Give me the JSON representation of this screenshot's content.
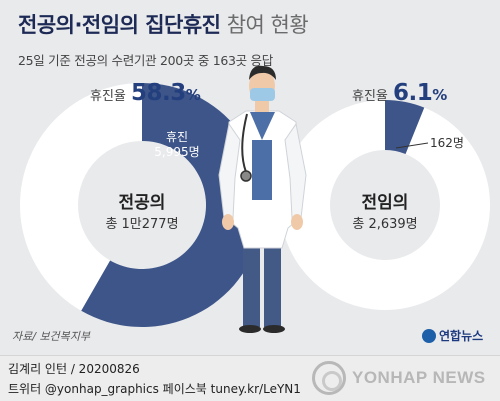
{
  "title": {
    "bold": "전공의·전임의 집단휴진",
    "light": "참여 현황"
  },
  "subtitle": "25일 기준 전공의 수련기관 200곳 중 163곳 응답",
  "chart_data": [
    {
      "type": "pie",
      "name": "전공의",
      "total_label": "총 1만277명",
      "total": 10277,
      "rate_label": "휴진율",
      "rate": "58.3",
      "rate_unit": "%",
      "slice_title": "휴진",
      "slice_value_label": "5,995명",
      "value": 5995,
      "fraction": 0.583,
      "colors": {
        "slice": "#3d5589",
        "rest": "#ffffff"
      }
    },
    {
      "type": "pie",
      "name": "전임의",
      "total_label": "총 2,639명",
      "total": 2639,
      "rate_label": "휴진율",
      "rate": "6.1",
      "rate_unit": "%",
      "slice_value_label": "162명",
      "value": 162,
      "fraction": 0.061,
      "colors": {
        "slice": "#3d5589",
        "rest": "#ffffff"
      }
    }
  ],
  "source": "자료/ 보건복지부",
  "logo_small": "연합뉴스",
  "footer": {
    "author": "김계리 인턴 / 20200826",
    "social": "트위터 @yonhap_graphics  페이스북 tuney.kr/LeYN1",
    "watermark": "YONHAP NEWS"
  }
}
